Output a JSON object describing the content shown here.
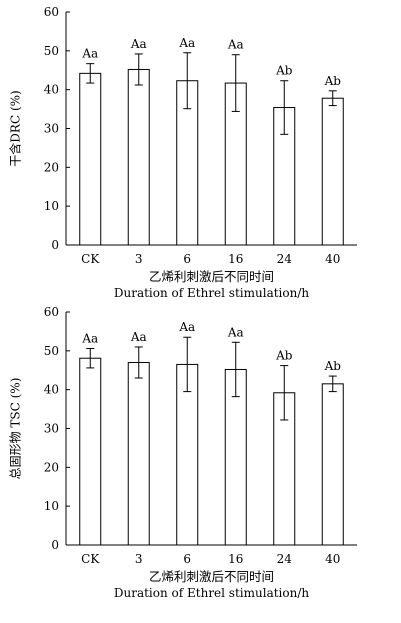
{
  "chart_data": [
    {
      "type": "bar",
      "ylabel": "干含DRC (%)",
      "xlabel": "乙烯利刺激后不同时间",
      "xlabel_en": "Duration of Ethrel stimulation/h",
      "ylim": [
        0,
        60
      ],
      "yticks": [
        "0",
        "10",
        "20",
        "30",
        "40",
        "50",
        "60"
      ],
      "categories": [
        "CK",
        "3",
        "6",
        "16",
        "24",
        "40"
      ],
      "values": [
        44.2,
        45.2,
        42.3,
        41.7,
        35.4,
        37.8
      ],
      "errors": [
        2.5,
        4.0,
        7.2,
        7.3,
        6.9,
        1.9
      ],
      "sig_labels": [
        "Aa",
        "Aa",
        "Aa",
        "Aa",
        "Ab",
        "Ab"
      ]
    },
    {
      "type": "bar",
      "ylabel": "总固形物 TSC (%)",
      "xlabel": "乙烯利刺激后不同时间",
      "xlabel_en": "Duration of Ethrel stimulation/h",
      "ylim": [
        0,
        60
      ],
      "yticks": [
        "0",
        "10",
        "20",
        "30",
        "40",
        "50",
        "60"
      ],
      "categories": [
        "CK",
        "3",
        "6",
        "16",
        "24",
        "40"
      ],
      "values": [
        48.1,
        47.0,
        46.5,
        45.2,
        39.2,
        41.5
      ],
      "errors": [
        2.5,
        4.0,
        7.0,
        7.0,
        7.0,
        2.0
      ],
      "sig_labels": [
        "Aa",
        "Aa",
        "Aa",
        "Aa",
        "Ab",
        "Ab"
      ]
    }
  ]
}
